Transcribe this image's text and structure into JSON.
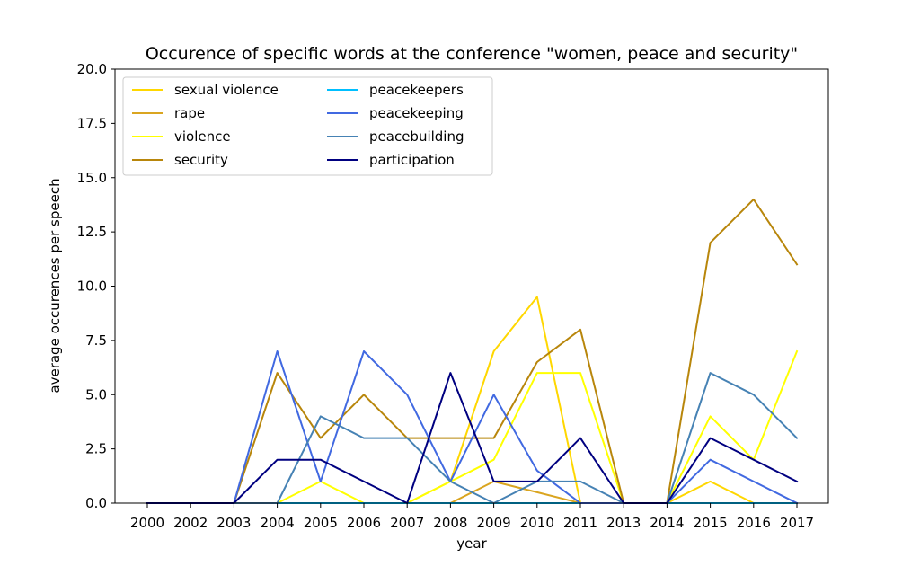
{
  "chart_data": {
    "type": "line",
    "title": "Occurence of specific words at the conference \"women, peace and security\"",
    "xlabel": "year",
    "ylabel": "average occurences per speech",
    "categories": [
      "2000",
      "2002",
      "2003",
      "2004",
      "2005",
      "2006",
      "2007",
      "2008",
      "2009",
      "2010",
      "2011",
      "2013",
      "2014",
      "2015",
      "2016",
      "2017"
    ],
    "ylim": [
      0,
      20
    ],
    "yticks": [
      "0.0",
      "2.5",
      "5.0",
      "7.5",
      "10.0",
      "12.5",
      "15.0",
      "17.5",
      "20.0"
    ],
    "grid": false,
    "legend_position": "top-left",
    "series": [
      {
        "name": "sexual violence",
        "color": "#FFD700",
        "values": [
          0,
          0,
          0,
          0,
          0,
          0,
          0,
          1,
          7,
          9.5,
          0,
          0,
          0,
          1,
          0,
          0
        ]
      },
      {
        "name": "rape",
        "color": "#DAA520",
        "values": [
          0,
          0,
          0,
          0,
          0,
          0,
          0,
          0,
          1,
          0.5,
          0,
          0,
          0,
          0,
          0,
          0
        ]
      },
      {
        "name": "violence",
        "color": "#FFFF00",
        "values": [
          0,
          0,
          0,
          0,
          1,
          0,
          0,
          1,
          2,
          6,
          6,
          0,
          0,
          4,
          2,
          7
        ]
      },
      {
        "name": "security",
        "color": "#B8860B",
        "values": [
          0,
          0,
          0,
          6,
          3,
          5,
          3,
          3,
          3,
          6.5,
          8,
          0,
          0,
          12,
          14,
          11
        ]
      },
      {
        "name": "peacekeepers",
        "color": "#00BFFF",
        "values": [
          0,
          0,
          0,
          0,
          0,
          0,
          0,
          0,
          0,
          0,
          0,
          0,
          0,
          0,
          0,
          0
        ]
      },
      {
        "name": "peacekeeping",
        "color": "#4169E1",
        "values": [
          0,
          0,
          0,
          7,
          1,
          7,
          5,
          1,
          5,
          1.5,
          0,
          0,
          0,
          2,
          1,
          0
        ]
      },
      {
        "name": "peacebuilding",
        "color": "#4682B4",
        "values": [
          0,
          0,
          0,
          0,
          4,
          3,
          3,
          1,
          0,
          1,
          1,
          0,
          0,
          6,
          5,
          3
        ]
      },
      {
        "name": "participation",
        "color": "#000080",
        "values": [
          0,
          0,
          0,
          2,
          2,
          1,
          0,
          6,
          1,
          1,
          3,
          0,
          0,
          3,
          2,
          1
        ]
      }
    ]
  }
}
